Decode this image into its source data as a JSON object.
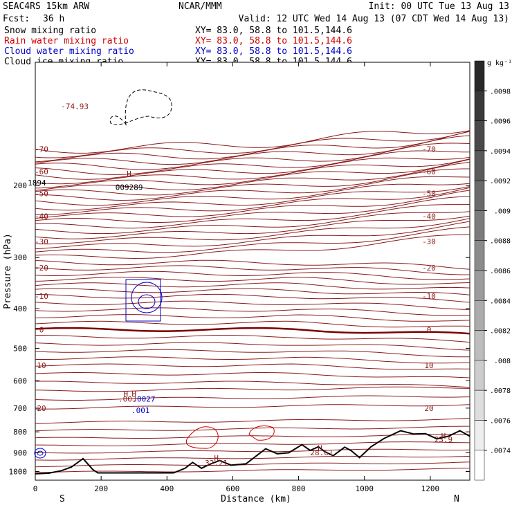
{
  "header": {
    "model": "SEAC4RS 15km ARW",
    "org": "NCAR/MMM",
    "init": "Init: 00 UTC Tue 13 Aug 13",
    "fcst_label": "Fcst:",
    "fcst_value": "36 h",
    "valid": "Valid: 12 UTC Wed 14 Aug 13 (07 CDT Wed 14 Aug 13)"
  },
  "fields": [
    {
      "name": "Snow mixing ratio",
      "xy": "XY=  83.0, 58.8 to 101.5,144.6",
      "color": "#000000"
    },
    {
      "name": "Rain water mixing ratio",
      "xy": "XY=  83.0, 58.8 to 101.5,144.6",
      "color": "#d10000"
    },
    {
      "name": "Cloud water mixing ratio",
      "xy": "XY=  83.0, 58.8 to 101.5,144.6",
      "color": "#0000cc"
    },
    {
      "name": "Cloud ice mixing ratio",
      "xy": "XY=  83.0, 58.8 to 101.5,144.6",
      "color": "#000000"
    }
  ],
  "colors": {
    "temperature": "#8b1a1a",
    "freezing_level": "#7a0000",
    "terrain": "#000000",
    "cloud_water": "#0000cc",
    "rain_water": "#d10000",
    "snow": "#000000"
  },
  "chart_data": {
    "type": "contour cross-section",
    "xlabel": "Distance (km)",
    "ylabel": "Pressure (hPa)",
    "xlim": [
      0,
      1320
    ],
    "ylim": [
      1050,
      100
    ],
    "y_scale": "log",
    "x_ticks": [
      "0",
      "200",
      "400",
      "600",
      "800",
      "1000",
      "1200"
    ],
    "y_ticks": [
      "200",
      "300",
      "400",
      "500",
      "600",
      "700",
      "800",
      "900",
      "1000"
    ],
    "end_labels": {
      "left": "S",
      "right": "N"
    },
    "temperature_contours_C": [
      {
        "value": -70,
        "label": "-70",
        "pressure": 163
      },
      {
        "value": -60,
        "label": "-60",
        "pressure": 185
      },
      {
        "value": -50,
        "label": "-50",
        "pressure": 209
      },
      {
        "value": -40,
        "label": "-40",
        "pressure": 238
      },
      {
        "value": -30,
        "label": "-30",
        "pressure": 274
      },
      {
        "value": -20,
        "label": "-20",
        "pressure": 318
      },
      {
        "value": -10,
        "label": "-10",
        "pressure": 373
      },
      {
        "value": 0,
        "label": "0",
        "pressure": 450
      },
      {
        "value": 10,
        "label": "10",
        "pressure": 550
      },
      {
        "value": 20,
        "label": "20",
        "pressure": 700
      }
    ],
    "extrema_labels": [
      {
        "text": "-74.93",
        "x": 120,
        "p": 130
      },
      {
        "text": "1894",
        "x": 5,
        "p": 200
      },
      {
        "text": "H",
        "x": 285,
        "p": 190
      },
      {
        "text": "009289",
        "x": 285,
        "p": 205
      },
      {
        "text": "H",
        "x": 275,
        "p": 655
      },
      {
        "text": "H",
        "x": 300,
        "p": 655
      },
      {
        "text": ".003",
        "x": 280,
        "p": 675
      },
      {
        "text": ".0027",
        "x": 330,
        "p": 675
      },
      {
        "text": ".001",
        "x": 320,
        "p": 720
      },
      {
        "text": "H",
        "x": 550,
        "p": 942
      },
      {
        "text": "32.21",
        "x": 550,
        "p": 968
      },
      {
        "text": "H",
        "x": 865,
        "p": 890
      },
      {
        "text": "28.61",
        "x": 870,
        "p": 912
      },
      {
        "text": "H",
        "x": 1240,
        "p": 832
      },
      {
        "text": "23.9",
        "x": 1240,
        "p": 848
      }
    ],
    "terrain_profile": [
      [
        0,
        1013
      ],
      [
        40,
        1010
      ],
      [
        80,
        995
      ],
      [
        110,
        975
      ],
      [
        145,
        930
      ],
      [
        175,
        990
      ],
      [
        190,
        1008
      ],
      [
        300,
        1008
      ],
      [
        420,
        1008
      ],
      [
        455,
        982
      ],
      [
        478,
        950
      ],
      [
        505,
        982
      ],
      [
        530,
        960
      ],
      [
        560,
        940
      ],
      [
        595,
        965
      ],
      [
        640,
        958
      ],
      [
        680,
        905
      ],
      [
        700,
        880
      ],
      [
        735,
        905
      ],
      [
        770,
        900
      ],
      [
        790,
        880
      ],
      [
        810,
        860
      ],
      [
        835,
        888
      ],
      [
        860,
        870
      ],
      [
        880,
        895
      ],
      [
        905,
        915
      ],
      [
        940,
        872
      ],
      [
        960,
        890
      ],
      [
        985,
        925
      ],
      [
        1020,
        870
      ],
      [
        1060,
        830
      ],
      [
        1110,
        795
      ],
      [
        1150,
        810
      ],
      [
        1185,
        808
      ],
      [
        1220,
        832
      ],
      [
        1255,
        820
      ],
      [
        1290,
        795
      ],
      [
        1320,
        820
      ]
    ],
    "colorbar": {
      "unit": "g kg⁻¹",
      "labels": [
        ".0098",
        ".0096",
        ".0094",
        ".0092",
        ".009",
        ".0088",
        ".0086",
        ".0084",
        ".0082",
        ".008",
        ".0078",
        ".0076",
        ".0074"
      ]
    }
  }
}
